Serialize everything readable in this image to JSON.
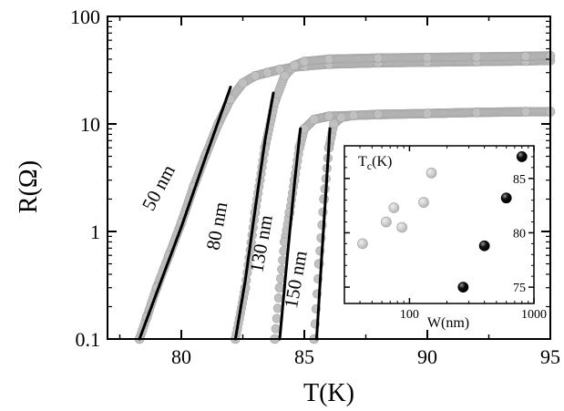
{
  "chart_data": [
    {
      "type": "scatter",
      "title": "",
      "xlabel": "T(K)",
      "ylabel": "R(Ω)",
      "xlim": [
        77,
        95
      ],
      "ylim": [
        0.1,
        100
      ],
      "yscale": "log",
      "x_ticks": [
        80,
        85,
        90,
        95
      ],
      "x_tick_labels": [
        "80",
        "85",
        "90",
        "95"
      ],
      "y_ticks": [
        0.1,
        1,
        10,
        100
      ],
      "y_tick_labels": [
        "0.1",
        "1",
        "10",
        "100"
      ],
      "grid": false,
      "legend": "none",
      "marker_color": "#c0c0c0",
      "fit_color": "#000000",
      "series": [
        {
          "label": "50 nm",
          "x": [
            78.3,
            78.6,
            79.0,
            79.5,
            80.0,
            80.5,
            81.0,
            81.5,
            82.0,
            82.5,
            83.0,
            83.5,
            84.0,
            84.5,
            85.0,
            86.0,
            88.0,
            90.0,
            92.0,
            94.0,
            95.0
          ],
          "y": [
            0.1,
            0.16,
            0.3,
            0.6,
            1.2,
            2.6,
            5.2,
            10,
            17,
            24,
            28,
            30,
            32,
            33.5,
            34.5,
            36,
            37,
            37.5,
            38,
            38.5,
            39
          ],
          "fit": {
            "x": [
              78.3,
              79.0,
              80.0,
              81.0,
              82.0
            ],
            "y": [
              0.1,
              0.27,
              1.1,
              5.0,
              22
            ]
          }
        },
        {
          "label": "80 nm",
          "x": [
            82.2,
            82.6,
            83.0,
            83.4,
            83.8,
            84.2,
            84.6,
            85.0,
            86.0,
            88.0,
            90.0,
            92.0,
            94.0,
            95.0
          ],
          "y": [
            0.1,
            0.3,
            1.5,
            6,
            16,
            28,
            35,
            38,
            40,
            41,
            41.5,
            42,
            42.5,
            43
          ],
          "fit": {
            "x": [
              82.2,
              82.6,
              83.0,
              83.4,
              83.75
            ],
            "y": [
              0.1,
              0.35,
              1.6,
              7,
              20
            ]
          }
        },
        {
          "label": "130 nm",
          "x": [
            83.8,
            84.0,
            84.2,
            84.4,
            84.6,
            84.8,
            85.0,
            85.4,
            86.0,
            87.0,
            88.0,
            90.0,
            92.0,
            94.0,
            95.0
          ],
          "y": [
            0.1,
            0.3,
            0.8,
            1.5,
            3,
            6,
            9,
            11,
            11.8,
            12,
            12.2,
            12.5,
            12.8,
            13,
            13
          ],
          "fit": {
            "x": [
              84.0,
              84.3,
              84.6,
              84.85
            ],
            "y": [
              0.1,
              0.55,
              2.8,
              9.5
            ]
          }
        },
        {
          "label": "150 nm",
          "x": [
            85.4,
            85.6,
            85.8,
            86.0,
            86.2,
            86.5,
            87.0,
            88.0,
            90.0,
            92.0,
            94.0,
            95.0
          ],
          "y": [
            0.1,
            0.5,
            2,
            6,
            10,
            11.5,
            12,
            12.3,
            12.5,
            12.8,
            13,
            13
          ],
          "fit": {
            "x": [
              85.5,
              85.7,
              85.9,
              86.05
            ],
            "y": [
              0.1,
              0.55,
              2.8,
              9.8
            ]
          }
        }
      ]
    },
    {
      "type": "scatter",
      "title": "",
      "xlabel": "W(nm)",
      "ylabel": "T_c(K)",
      "xscale": "log",
      "xlim": [
        30,
        1000
      ],
      "ylim": [
        73.5,
        88
      ],
      "x_ticks": [
        100,
        1000
      ],
      "x_tick_labels": [
        "100",
        "1000"
      ],
      "y_ticks": [
        75,
        80,
        85
      ],
      "y_tick_labels": [
        "75",
        "80",
        "85"
      ],
      "grid": false,
      "legend": "none",
      "series": [
        {
          "color": "#c0c0c0",
          "x": [
            42,
            65,
            75,
            87,
            130,
            150
          ],
          "y": [
            79,
            81,
            82.3,
            80.5,
            82.8,
            85.5
          ]
        },
        {
          "color": "#000000",
          "x": [
            270,
            400,
            600,
            800
          ],
          "y": [
            75,
            78.8,
            83.2,
            87
          ]
        }
      ]
    }
  ]
}
